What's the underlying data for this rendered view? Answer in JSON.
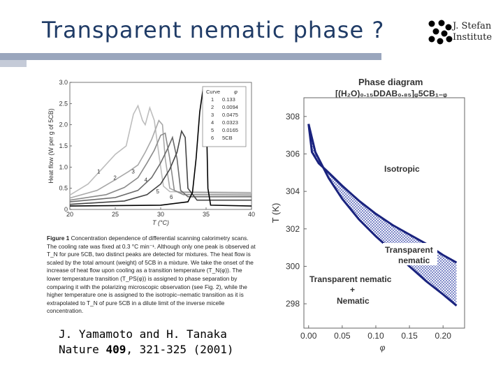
{
  "slide": {
    "title": "Transparent nematic phase ?",
    "logo_line1": "J. Stefan",
    "logo_line2": "Institute",
    "reference_authors": "J. Yamamoto and H. Tanaka",
    "reference_journal": "Nature",
    "reference_volume": "409",
    "reference_pages": ", 321-325 (2001)"
  },
  "figure_caption": {
    "label": "Figure 1",
    "text": "Concentration dependence of differential scanning calorimetry scans. The cooling rate was fixed at 0.3 °C min⁻¹. Although only one peak is observed at T_N for pure 5CB, two distinct peaks are detected for mixtures. The heat flow is scaled by the total amount (weight) of 5CB in a mixture. We take the onset of the increase of heat flow upon cooling as a transition temperature (T_N(φ)). The lower temperature transition (T_PS(φ)) is assigned to phase separation by comparing it with the polarizing microscopic observation (see Fig. 2), while the higher temperature one is assigned to the isotropic–nematic transition as it is extrapolated to T_N of pure 5CB in a dilute limit of the inverse micelle concentration."
  },
  "chart_data": [
    {
      "type": "line",
      "xlabel": "T (°C)",
      "ylabel": "Heat flow (W per g of 5CB)",
      "xlim": [
        20,
        40
      ],
      "ylim": [
        0,
        3.0
      ],
      "x_ticks": [
        "20",
        "25",
        "30",
        "35",
        "40"
      ],
      "y_ticks": [
        "0",
        "0.5",
        "1.0",
        "1.5",
        "2.0",
        "2.5",
        "3.0"
      ],
      "legend_title_curve": "Curve",
      "legend_title_phi": "φ",
      "legend_position": "top-right",
      "series": [
        {
          "name": "1",
          "phi": "0.133",
          "color": "#bdbdbd",
          "label_pos": [
            23.0,
            0.85
          ],
          "points": [
            [
              20,
              0.34
            ],
            [
              22,
              0.6
            ],
            [
              23.5,
              0.95
            ],
            [
              25,
              1.3
            ],
            [
              26.2,
              1.5
            ],
            [
              27,
              2.25
            ],
            [
              27.5,
              2.45
            ],
            [
              28,
              2.1
            ],
            [
              28.3,
              2.0
            ],
            [
              28.8,
              2.4
            ],
            [
              29.3,
              2.1
            ],
            [
              29.8,
              1.3
            ],
            [
              30.3,
              0.55
            ],
            [
              31,
              0.42
            ],
            [
              35,
              0.41
            ],
            [
              40,
              0.4
            ]
          ]
        },
        {
          "name": "2",
          "phi": "0.0094",
          "color": "#a8a8a8",
          "label_pos": [
            24.8,
            0.7
          ],
          "points": [
            [
              20,
              0.27
            ],
            [
              23,
              0.45
            ],
            [
              25,
              0.7
            ],
            [
              26.5,
              0.9
            ],
            [
              27.5,
              1.05
            ],
            [
              28.3,
              1.35
            ],
            [
              29,
              1.65
            ],
            [
              29.8,
              2.1
            ],
            [
              30.2,
              2.0
            ],
            [
              30.5,
              1.2
            ],
            [
              31,
              0.5
            ],
            [
              32,
              0.4
            ],
            [
              40,
              0.38
            ]
          ]
        },
        {
          "name": "3",
          "phi": "0.0475",
          "color": "#8a8a8a",
          "label_pos": [
            26.8,
            0.85
          ],
          "points": [
            [
              20,
              0.22
            ],
            [
              24,
              0.35
            ],
            [
              26,
              0.52
            ],
            [
              27.5,
              0.75
            ],
            [
              28.5,
              1.1
            ],
            [
              29.3,
              1.4
            ],
            [
              30,
              1.75
            ],
            [
              30.5,
              1.8
            ],
            [
              31,
              1.2
            ],
            [
              31.5,
              0.45
            ],
            [
              32.5,
              0.35
            ],
            [
              40,
              0.34
            ]
          ]
        },
        {
          "name": "4",
          "phi": "0.0323",
          "color": "#6a6a6a",
          "label_pos": [
            28.2,
            0.65
          ],
          "points": [
            [
              20,
              0.18
            ],
            [
              25,
              0.28
            ],
            [
              27.5,
              0.45
            ],
            [
              29,
              0.75
            ],
            [
              30,
              1.1
            ],
            [
              30.8,
              1.45
            ],
            [
              31.3,
              1.7
            ],
            [
              31.8,
              1.2
            ],
            [
              32.2,
              0.45
            ],
            [
              33,
              0.3
            ],
            [
              40,
              0.3
            ]
          ]
        },
        {
          "name": "5",
          "phi": "0.0165",
          "color": "#444444",
          "label_pos": [
            29.5,
            0.38
          ],
          "points": [
            [
              20,
              0.12
            ],
            [
              26,
              0.2
            ],
            [
              28.5,
              0.35
            ],
            [
              30,
              0.6
            ],
            [
              31,
              0.95
            ],
            [
              31.8,
              1.35
            ],
            [
              32.3,
              1.85
            ],
            [
              32.7,
              1.7
            ],
            [
              33,
              0.5
            ],
            [
              34,
              0.22
            ],
            [
              40,
              0.22
            ]
          ]
        },
        {
          "name": "6",
          "phi": "5CB",
          "color": "#000000",
          "label_pos": [
            31.0,
            0.25
          ],
          "points": [
            [
              20,
              0.08
            ],
            [
              30,
              0.1
            ],
            [
              33,
              0.18
            ],
            [
              33.5,
              0.4
            ],
            [
              33.9,
              1.2
            ],
            [
              34.3,
              2.3
            ],
            [
              34.7,
              2.9
            ],
            [
              35,
              2.55
            ],
            [
              35.2,
              0.5
            ],
            [
              35.5,
              0.1
            ],
            [
              40,
              0.08
            ]
          ]
        }
      ]
    },
    {
      "type": "area",
      "title": "Phase diagram",
      "subtitle": "[(H₂O)₀.₁₅DDAB₀.₈₅]ᵩ5CB₁₋ᵩ",
      "xlabel": "φ",
      "ylabel": "T (K)",
      "xlim": [
        -0.007,
        0.232
      ],
      "ylim": [
        296.7,
        309.0
      ],
      "x_ticks": [
        "0.00",
        "0.05",
        "0.10",
        "0.15",
        "0.20"
      ],
      "y_ticks": [
        "298",
        "300",
        "302",
        "304",
        "306",
        "308"
      ],
      "upper_boundary": {
        "x": [
          0.0,
          0.01,
          0.03,
          0.05,
          0.075,
          0.1,
          0.125,
          0.15,
          0.175,
          0.2,
          0.22
        ],
        "y": [
          307.6,
          306.1,
          304.7,
          303.6,
          302.5,
          301.6,
          300.8,
          300.0,
          299.2,
          298.5,
          297.9
        ]
      },
      "lower_boundary": {
        "x": [
          0.0,
          0.005,
          0.015,
          0.03,
          0.05,
          0.075,
          0.1,
          0.125,
          0.15,
          0.175,
          0.2,
          0.22
        ],
        "y": [
          307.6,
          306.1,
          305.5,
          305.0,
          304.3,
          303.5,
          302.8,
          302.2,
          301.7,
          301.2,
          300.6,
          300.2
        ]
      },
      "labels": {
        "isotropic": "Isotropic",
        "transparent_nematic": "Transparent nematic",
        "two_phase_line1": "Transparent nematic",
        "two_phase_line2": "+",
        "two_phase_line3": "Nematic"
      },
      "colors": {
        "line": "#1a237e",
        "hatch": "#3949ab"
      }
    }
  ]
}
